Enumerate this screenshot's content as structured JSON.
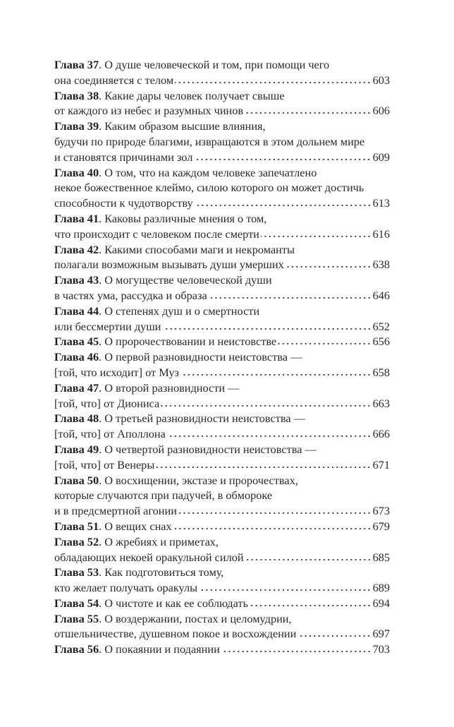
{
  "toc": {
    "entries": [
      {
        "label": "Глава 37",
        "lines": [
          "О душе человеческой и том, при помощи чего",
          "она соединяется с телом"
        ],
        "page": "603"
      },
      {
        "label": "Глава 38",
        "lines": [
          "Какие дары человек получает свыше",
          "от каждого из небес и разумных чинов"
        ],
        "page": "606"
      },
      {
        "label": "Глава 39",
        "lines": [
          "Каким образом высшие влияния,",
          "будучи по природе благими, извращаются в этом дольнем мире",
          "и становятся причинами зол"
        ],
        "page": "609"
      },
      {
        "label": "Глава 40",
        "lines": [
          "О том, что на каждом человеке запечатлено",
          "некое божественное клеймо, силою которого он может достичь",
          "способности к чудотворству"
        ],
        "page": "613"
      },
      {
        "label": "Глава 41",
        "lines": [
          "Каковы различные мнения о том,",
          "что происходит с человеком после смерти"
        ],
        "page": "616"
      },
      {
        "label": "Глава 42",
        "lines": [
          "Какими способами маги и некроманты",
          "полагали возможным вызывать души умерших"
        ],
        "page": "638"
      },
      {
        "label": "Глава 43",
        "lines": [
          "О могуществе человеческой души",
          "в частях ума, рассудка и образа"
        ],
        "page": "646"
      },
      {
        "label": "Глава 44",
        "lines": [
          "О степенях душ и о смертности",
          "или бессмертии души"
        ],
        "page": "652"
      },
      {
        "label": "Глава 45",
        "lines": [
          "О пророчествовании и неистовстве"
        ],
        "page": "656"
      },
      {
        "label": "Глава 46",
        "lines": [
          "О первой разновидности неистовства —",
          "[той, что исходит] от Муз"
        ],
        "page": "658"
      },
      {
        "label": "Глава 47",
        "lines": [
          "О второй разновидности —",
          "[той, что] от Диониса"
        ],
        "page": "663"
      },
      {
        "label": "Глава 48",
        "lines": [
          "О третьей разновидности неистовства —",
          "[той, что] от Аполлона"
        ],
        "page": "666"
      },
      {
        "label": "Глава 49",
        "lines": [
          "О четвертой разновидности неистовства —",
          "[той, что] от Венеры"
        ],
        "page": "671"
      },
      {
        "label": "Глава 50",
        "lines": [
          "О восхищении, экстазе и пророчествах,",
          "которые случаются при падучей, в обмороке",
          "и в предсмертной агонии"
        ],
        "page": "673"
      },
      {
        "label": "Глава 51",
        "lines": [
          "О вещих снах"
        ],
        "page": "679"
      },
      {
        "label": "Глава 52",
        "lines": [
          "О жребиях и приметах,",
          "обладающих некоей оракульной силой"
        ],
        "page": "685"
      },
      {
        "label": "Глава 53",
        "lines": [
          "Как подготовиться тому,",
          "кто желает получать оракулы"
        ],
        "page": "689"
      },
      {
        "label": "Глава 54",
        "lines": [
          "О чистоте и как ее соблюдать"
        ],
        "page": "694"
      },
      {
        "label": "Глава 55",
        "lines": [
          "О воздержании, постах и целомудрии,",
          "отшельничестве, душевном покое и восхождении"
        ],
        "page": "697"
      },
      {
        "label": "Глава 56",
        "lines": [
          "О покаянии и подаянии"
        ],
        "page": "703"
      }
    ]
  }
}
